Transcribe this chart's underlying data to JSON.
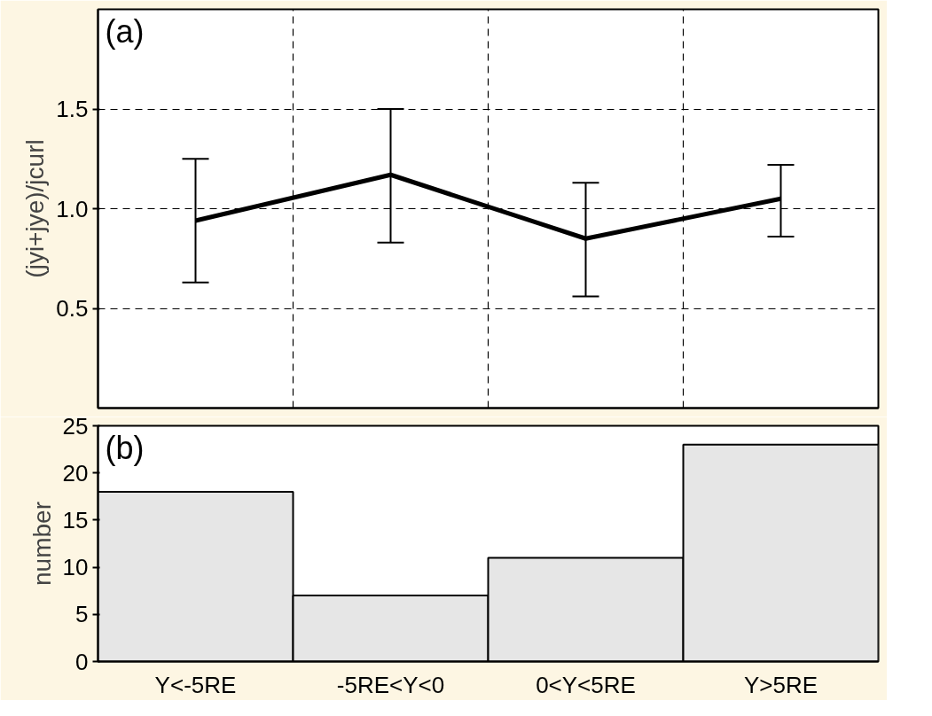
{
  "chart_data": [
    {
      "type": "line",
      "categories": [
        null,
        null,
        null,
        null
      ],
      "ylabel": "(jyi+jye)/jcurl",
      "annotations": [
        "(a)"
      ],
      "series": [
        {
          "color": "#000000",
          "values": [
            0.94,
            1.17,
            0.85,
            1.05
          ],
          "errors": [
            [
              0.63,
              1.25
            ],
            [
              0.83,
              1.5
            ],
            [
              0.56,
              1.13
            ],
            [
              0.86,
              1.22
            ]
          ]
        }
      ],
      "ylim": [
        0,
        2
      ],
      "yticks": [
        0.5,
        {
          "value": 1,
          "label": "1.0"
        },
        1.5
      ],
      "grid": true,
      "tick_labels": "y",
      "marker": "none",
      "line_style": "solid"
    },
    {
      "type": "bar",
      "categories": [
        "Y<-5RE",
        "-5RE<Y<0",
        "0<Y<5RE",
        "Y>5RE"
      ],
      "ylabel": "number",
      "annotations": [
        "(b)"
      ],
      "series": [
        {
          "color": "#e6e6e6",
          "values": [
            18,
            7,
            11,
            23
          ]
        }
      ],
      "ylim": [
        0,
        25
      ],
      "yticks": [
        0,
        5,
        10,
        15,
        20,
        25
      ],
      "grid": false
    }
  ]
}
